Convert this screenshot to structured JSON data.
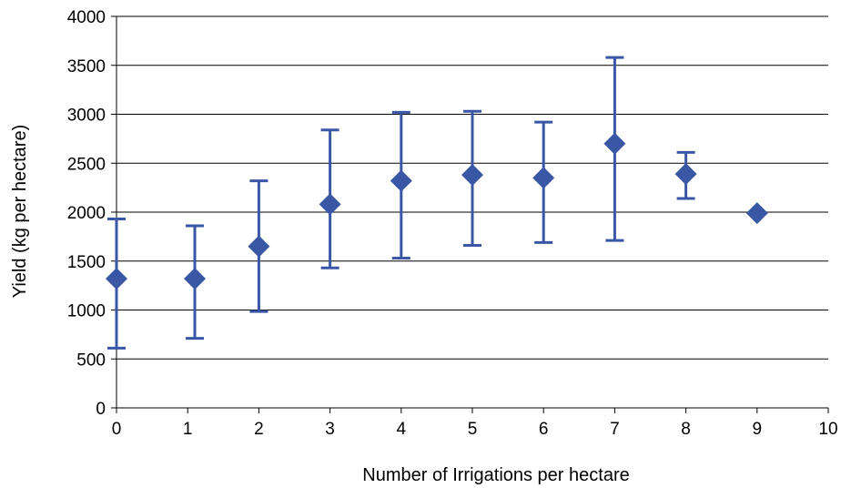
{
  "chart_data": {
    "type": "scatter",
    "xlabel": "Number of Irrigations per hectare",
    "ylabel": "Yield (kg per hectare)",
    "xlim": [
      0,
      10
    ],
    "ylim": [
      0,
      4000
    ],
    "x_ticks": [
      "0",
      "1",
      "2",
      "3",
      "4",
      "5",
      "6",
      "7",
      "8",
      "9",
      "10"
    ],
    "y_ticks": [
      "0",
      "500",
      "1000",
      "1500",
      "2000",
      "2500",
      "3000",
      "3500",
      "4000"
    ],
    "grid": "horizontal",
    "marker_color": "#3A57A6",
    "points": [
      {
        "x": 0,
        "y": 1320,
        "low": 610,
        "high": 1930
      },
      {
        "x": 1.1,
        "y": 1320,
        "low": 710,
        "high": 1860
      },
      {
        "x": 2,
        "y": 1650,
        "low": 985,
        "high": 2320
      },
      {
        "x": 3,
        "y": 2080,
        "low": 1430,
        "high": 2840
      },
      {
        "x": 4,
        "y": 2320,
        "low": 1530,
        "high": 3020
      },
      {
        "x": 5,
        "y": 2380,
        "low": 1660,
        "high": 3030
      },
      {
        "x": 6,
        "y": 2350,
        "low": 1690,
        "high": 2920
      },
      {
        "x": 7,
        "y": 2700,
        "low": 1710,
        "high": 3580
      },
      {
        "x": 8,
        "y": 2390,
        "low": 2140,
        "high": 2610
      },
      {
        "x": 9,
        "y": 1990
      }
    ]
  }
}
